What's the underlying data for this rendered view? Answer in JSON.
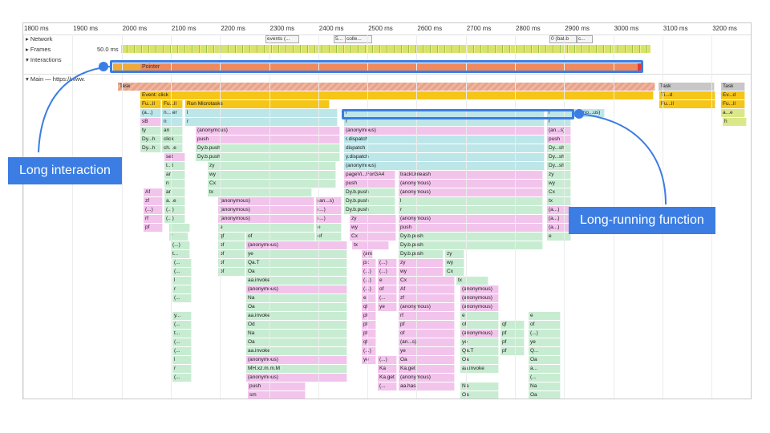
{
  "ruler": {
    "ticks": [
      "1800 ms",
      "1900 ms",
      "2000 ms",
      "2100 ms",
      "2200 ms",
      "2300 ms",
      "2400 ms",
      "2500 ms",
      "2600 ms",
      "2700 ms",
      "2800 ms",
      "2900 ms",
      "3000 ms",
      "3100 ms",
      "3200 ms"
    ]
  },
  "tracks": {
    "network": "Network",
    "frames": "Frames",
    "frames_value": "50.0 ms",
    "interactions": "Interactions",
    "main": "Main — https://www."
  },
  "network_chips": [
    {
      "label": "events (..."
    },
    {
      "label": "5..."
    },
    {
      "label": "colle..."
    },
    {
      "label": "0 (bat.b"
    },
    {
      "label": "c..."
    }
  ],
  "interaction": {
    "label": "Pointer"
  },
  "flame_rows": [
    [
      {
        "t": "Task",
        "c": "task-stripe"
      },
      {
        "t": "Task",
        "c": "grey"
      },
      {
        "t": "Task",
        "c": "grey"
      }
    ],
    [
      {
        "t": "Event: click",
        "c": "yellow"
      },
      {
        "t": "Ti...d",
        "c": "yellow"
      },
      {
        "t": "Ev...d",
        "c": "yellow"
      }
    ],
    [
      {
        "t": "Fu...ll",
        "c": "yellow"
      },
      {
        "t": "Fu...ll",
        "c": "yellow"
      },
      {
        "t": "Run Microtasks",
        "c": "yellow"
      },
      {
        "t": "Fu...ll",
        "c": "yellow"
      },
      {
        "t": "Fu...ll",
        "c": "yellow"
      }
    ],
    [
      {
        "t": "(a...)",
        "c": "teal"
      },
      {
        "t": "n....er",
        "c": "teal"
      },
      {
        "t": "l",
        "c": "teal"
      },
      {
        "t": "l",
        "c": "teal"
      },
      {
        "t": "l",
        "c": "teal"
      },
      {
        "t": "(ano...us)",
        "c": "teal"
      },
      {
        "t": "a...e",
        "c": "lime"
      }
    ],
    [
      {
        "t": "sB",
        "c": "pink"
      },
      {
        "t": "n",
        "c": "teal"
      },
      {
        "t": "r",
        "c": "teal"
      },
      {
        "t": "r",
        "c": "teal"
      },
      {
        "t": "r",
        "c": "teal"
      },
      {
        "t": "h",
        "c": "lime"
      }
    ],
    [
      {
        "t": "ty",
        "c": "green"
      },
      {
        "t": "an",
        "c": "green"
      },
      {
        "t": "(anonymous)",
        "c": "pink"
      },
      {
        "t": "(anonymous)",
        "c": "pink"
      },
      {
        "t": "(an...s)",
        "c": "pink"
      }
    ],
    [
      {
        "t": "Dy...h",
        "c": "green"
      },
      {
        "t": "click",
        "c": "green"
      },
      {
        "t": "push",
        "c": "pink"
      },
      {
        "t": "r.dispatch",
        "c": "teal"
      },
      {
        "t": "push",
        "c": "pink"
      }
    ],
    [
      {
        "t": "Dy...h",
        "c": "green"
      },
      {
        "t": "ch...e",
        "c": "green"
      },
      {
        "t": "Dy.b.push",
        "c": "green"
      },
      {
        "t": "dispatch",
        "c": "teal"
      },
      {
        "t": "Dy...sh",
        "c": "green"
      }
    ],
    [
      {
        "t": "set",
        "c": "pink"
      },
      {
        "t": "Dy.b.push",
        "c": "green"
      },
      {
        "t": "y.dispatch",
        "c": "teal"
      },
      {
        "t": "Dy...sh",
        "c": "green"
      }
    ],
    [
      {
        "t": "t...t",
        "c": "green"
      },
      {
        "t": "zy",
        "c": "green"
      },
      {
        "t": "(anonymous)",
        "c": "teal"
      },
      {
        "t": "Dy...sh",
        "c": "green"
      }
    ],
    [
      {
        "t": "an",
        "c": "green"
      },
      {
        "t": "wy",
        "c": "green"
      },
      {
        "t": "pageVi...ForGA4",
        "c": "pink"
      },
      {
        "t": "trackUnleash",
        "c": "pink"
      },
      {
        "t": "zy",
        "c": "green"
      }
    ],
    [
      {
        "t": "n",
        "c": "green"
      },
      {
        "t": "Cx",
        "c": "green"
      },
      {
        "t": "push",
        "c": "pink"
      },
      {
        "t": "(anonymous)",
        "c": "pink"
      },
      {
        "t": "wy",
        "c": "green"
      }
    ],
    [
      {
        "t": "Af",
        "c": "pink"
      },
      {
        "t": "an",
        "c": "green"
      },
      {
        "t": "tx",
        "c": "green"
      },
      {
        "t": "Dy.b.push",
        "c": "green"
      },
      {
        "t": "(anonymous)",
        "c": "pink"
      },
      {
        "t": "Cx",
        "c": "green"
      }
    ],
    [
      {
        "t": "zf",
        "c": "pink"
      },
      {
        "t": "a...e",
        "c": "green"
      },
      {
        "t": "(anonymous)",
        "c": "pink"
      },
      {
        "t": "(an...s)",
        "c": "pink"
      },
      {
        "t": "Dy.b.push",
        "c": "green"
      },
      {
        "t": "l",
        "c": "green"
      },
      {
        "t": "tx",
        "c": "green"
      }
    ],
    [
      {
        "t": "(...)",
        "c": "pink"
      },
      {
        "t": "(...)",
        "c": "green"
      },
      {
        "t": "(anonymous)",
        "c": "pink"
      },
      {
        "t": "(...)",
        "c": "pink"
      },
      {
        "t": "Dy.b.push",
        "c": "green"
      },
      {
        "t": "r",
        "c": "green"
      },
      {
        "t": "(a...)",
        "c": "pink"
      }
    ],
    [
      {
        "t": "rf",
        "c": "pink"
      },
      {
        "t": "(...)",
        "c": "green"
      },
      {
        "t": "(anonymous)",
        "c": "pink"
      },
      {
        "t": "(...)",
        "c": "pink"
      },
      {
        "t": "zy",
        "c": "pink"
      },
      {
        "t": "(anonymous)",
        "c": "pink"
      },
      {
        "t": "(a...)",
        "c": "pink"
      }
    ],
    [
      {
        "t": "pf",
        "c": "pink"
      },
      {
        "t": "l",
        "c": "green"
      },
      {
        "t": "e",
        "c": "green"
      },
      {
        "t": "e",
        "c": "green"
      },
      {
        "t": "wy",
        "c": "pink"
      },
      {
        "t": "push",
        "c": "pink"
      },
      {
        "t": "(a...)",
        "c": "pink"
      }
    ],
    [
      {
        "t": "r",
        "c": "green"
      },
      {
        "t": "qf",
        "c": "green"
      },
      {
        "t": "of",
        "c": "green"
      },
      {
        "t": "of",
        "c": "green"
      },
      {
        "t": "Cx",
        "c": "pink"
      },
      {
        "t": "Dy.b.push",
        "c": "green"
      },
      {
        "t": "e",
        "c": "green"
      }
    ],
    [
      {
        "t": "(...)",
        "c": "green"
      },
      {
        "t": "pf",
        "c": "green"
      },
      {
        "t": "(anonymous)",
        "c": "pink"
      },
      {
        "t": "tx",
        "c": "pink"
      },
      {
        "t": "Dy.b.push",
        "c": "green"
      }
    ],
    [
      {
        "t": "t...",
        "c": "green"
      },
      {
        "t": "pf",
        "c": "green"
      },
      {
        "t": "ye",
        "c": "green"
      },
      {
        "t": "(ano...us)",
        "c": "pink"
      },
      {
        "t": "Dy.b.push",
        "c": "green"
      },
      {
        "t": "zy",
        "c": "green"
      }
    ],
    [
      {
        "t": "(...",
        "c": "green"
      },
      {
        "t": "pf",
        "c": "green"
      },
      {
        "t": "Qa.T",
        "c": "green"
      },
      {
        "t": "px",
        "c": "pink"
      },
      {
        "t": "(...)",
        "c": "pink"
      },
      {
        "t": "zy",
        "c": "pink"
      },
      {
        "t": "wy",
        "c": "green"
      }
    ],
    [
      {
        "t": "(...",
        "c": "green"
      },
      {
        "t": "pf",
        "c": "green"
      },
      {
        "t": "Oa",
        "c": "green"
      },
      {
        "t": "(...)",
        "c": "pink"
      },
      {
        "t": "(...)",
        "c": "pink"
      },
      {
        "t": "wy",
        "c": "pink"
      },
      {
        "t": "Cx",
        "c": "green"
      }
    ],
    [
      {
        "t": "l",
        "c": "green"
      },
      {
        "t": "aa.invoke",
        "c": "green"
      },
      {
        "t": "(...)",
        "c": "pink"
      },
      {
        "t": "e",
        "c": "pink"
      },
      {
        "t": "Cx",
        "c": "pink"
      },
      {
        "t": "tx",
        "c": "green"
      }
    ],
    [
      {
        "t": "r",
        "c": "green"
      },
      {
        "t": "(anonymous)",
        "c": "pink"
      },
      {
        "t": "(...)",
        "c": "pink"
      },
      {
        "t": "of",
        "c": "pink"
      },
      {
        "t": "Af",
        "c": "pink"
      },
      {
        "t": "(anonymous)",
        "c": "pink"
      }
    ],
    [
      {
        "t": "(...",
        "c": "green"
      },
      {
        "t": "Na",
        "c": "green"
      },
      {
        "t": "e",
        "c": "pink"
      },
      {
        "t": "(...",
        "c": "pink"
      },
      {
        "t": "zf",
        "c": "pink"
      },
      {
        "t": "(anonymous)",
        "c": "pink"
      }
    ],
    [
      {
        "t": "Oa",
        "c": "green"
      },
      {
        "t": "qf",
        "c": "pink"
      },
      {
        "t": "ye",
        "c": "pink"
      },
      {
        "t": "(anonymous)",
        "c": "pink"
      },
      {
        "t": "(anonymous)",
        "c": "pink"
      }
    ],
    [
      {
        "t": "y...",
        "c": "green"
      },
      {
        "t": "aa.invoke",
        "c": "green"
      },
      {
        "t": "pf",
        "c": "pink"
      },
      {
        "t": "rf",
        "c": "pink"
      },
      {
        "t": "e",
        "c": "green"
      },
      {
        "t": "e",
        "c": "green"
      }
    ],
    [
      {
        "t": "(...",
        "c": "green"
      },
      {
        "t": "Od",
        "c": "green"
      },
      {
        "t": "pf",
        "c": "pink"
      },
      {
        "t": "pf",
        "c": "pink"
      },
      {
        "t": "of",
        "c": "green"
      },
      {
        "t": "qf",
        "c": "green"
      },
      {
        "t": "of",
        "c": "green"
      }
    ],
    [
      {
        "t": "t...",
        "c": "green"
      },
      {
        "t": "Na",
        "c": "green"
      },
      {
        "t": "pf",
        "c": "pink"
      },
      {
        "t": "of",
        "c": "pink"
      },
      {
        "t": "(anonymous)",
        "c": "pink"
      },
      {
        "t": "pf",
        "c": "green"
      },
      {
        "t": "(...)",
        "c": "green"
      }
    ],
    [
      {
        "t": "(...",
        "c": "green"
      },
      {
        "t": "Oa",
        "c": "green"
      },
      {
        "t": "qf",
        "c": "pink"
      },
      {
        "t": "(an...s)",
        "c": "pink"
      },
      {
        "t": "ye",
        "c": "green"
      },
      {
        "t": "pf",
        "c": "green"
      },
      {
        "t": "ye",
        "c": "green"
      }
    ],
    [
      {
        "t": "(...",
        "c": "green"
      },
      {
        "t": "aa.invoke",
        "c": "green"
      },
      {
        "t": "(...)",
        "c": "pink"
      },
      {
        "t": "ye",
        "c": "pink"
      },
      {
        "t": "Qa.T",
        "c": "green"
      },
      {
        "t": "pf",
        "c": "green"
      },
      {
        "t": "Q...",
        "c": "green"
      }
    ],
    [
      {
        "t": "l",
        "c": "green"
      },
      {
        "t": "(anonymous)",
        "c": "pink"
      },
      {
        "t": "ye",
        "c": "pink"
      },
      {
        "t": "(...)",
        "c": "pink"
      },
      {
        "t": "Oa",
        "c": "pink"
      },
      {
        "t": "Oa",
        "c": "green"
      },
      {
        "t": "Oa",
        "c": "green"
      }
    ],
    [
      {
        "t": "r",
        "c": "green"
      },
      {
        "t": "MH.xz.m.m.M",
        "c": "green"
      },
      {
        "t": "Ka",
        "c": "pink"
      },
      {
        "t": "Ka.get",
        "c": "pink"
      },
      {
        "t": "aa.invoke",
        "c": "green"
      },
      {
        "t": "a...",
        "c": "green"
      }
    ],
    [
      {
        "t": "(...",
        "c": "green"
      },
      {
        "t": "(anonymous)",
        "c": "pink"
      },
      {
        "t": "Ka.get",
        "c": "pink"
      },
      {
        "t": "(anonymous)",
        "c": "pink"
      },
      {
        "t": "(...",
        "c": "green"
      }
    ],
    [
      {
        "t": "push",
        "c": "pink"
      },
      {
        "t": "(...",
        "c": "pink"
      },
      {
        "t": "aa.has",
        "c": "pink"
      },
      {
        "t": "Na",
        "c": "green"
      },
      {
        "t": "Na",
        "c": "green"
      }
    ],
    [
      {
        "t": "sm",
        "c": "pink"
      },
      {
        "t": "Oa",
        "c": "green"
      },
      {
        "t": "Oa",
        "c": "green"
      }
    ]
  ],
  "callouts": {
    "long_interaction": "Long interaction",
    "long_running_function": "Long-running function"
  },
  "colors": {
    "accent": "#3b7de3",
    "task": "#c7c7c7",
    "event": "#f5c518",
    "interaction": "#f08a5d"
  }
}
